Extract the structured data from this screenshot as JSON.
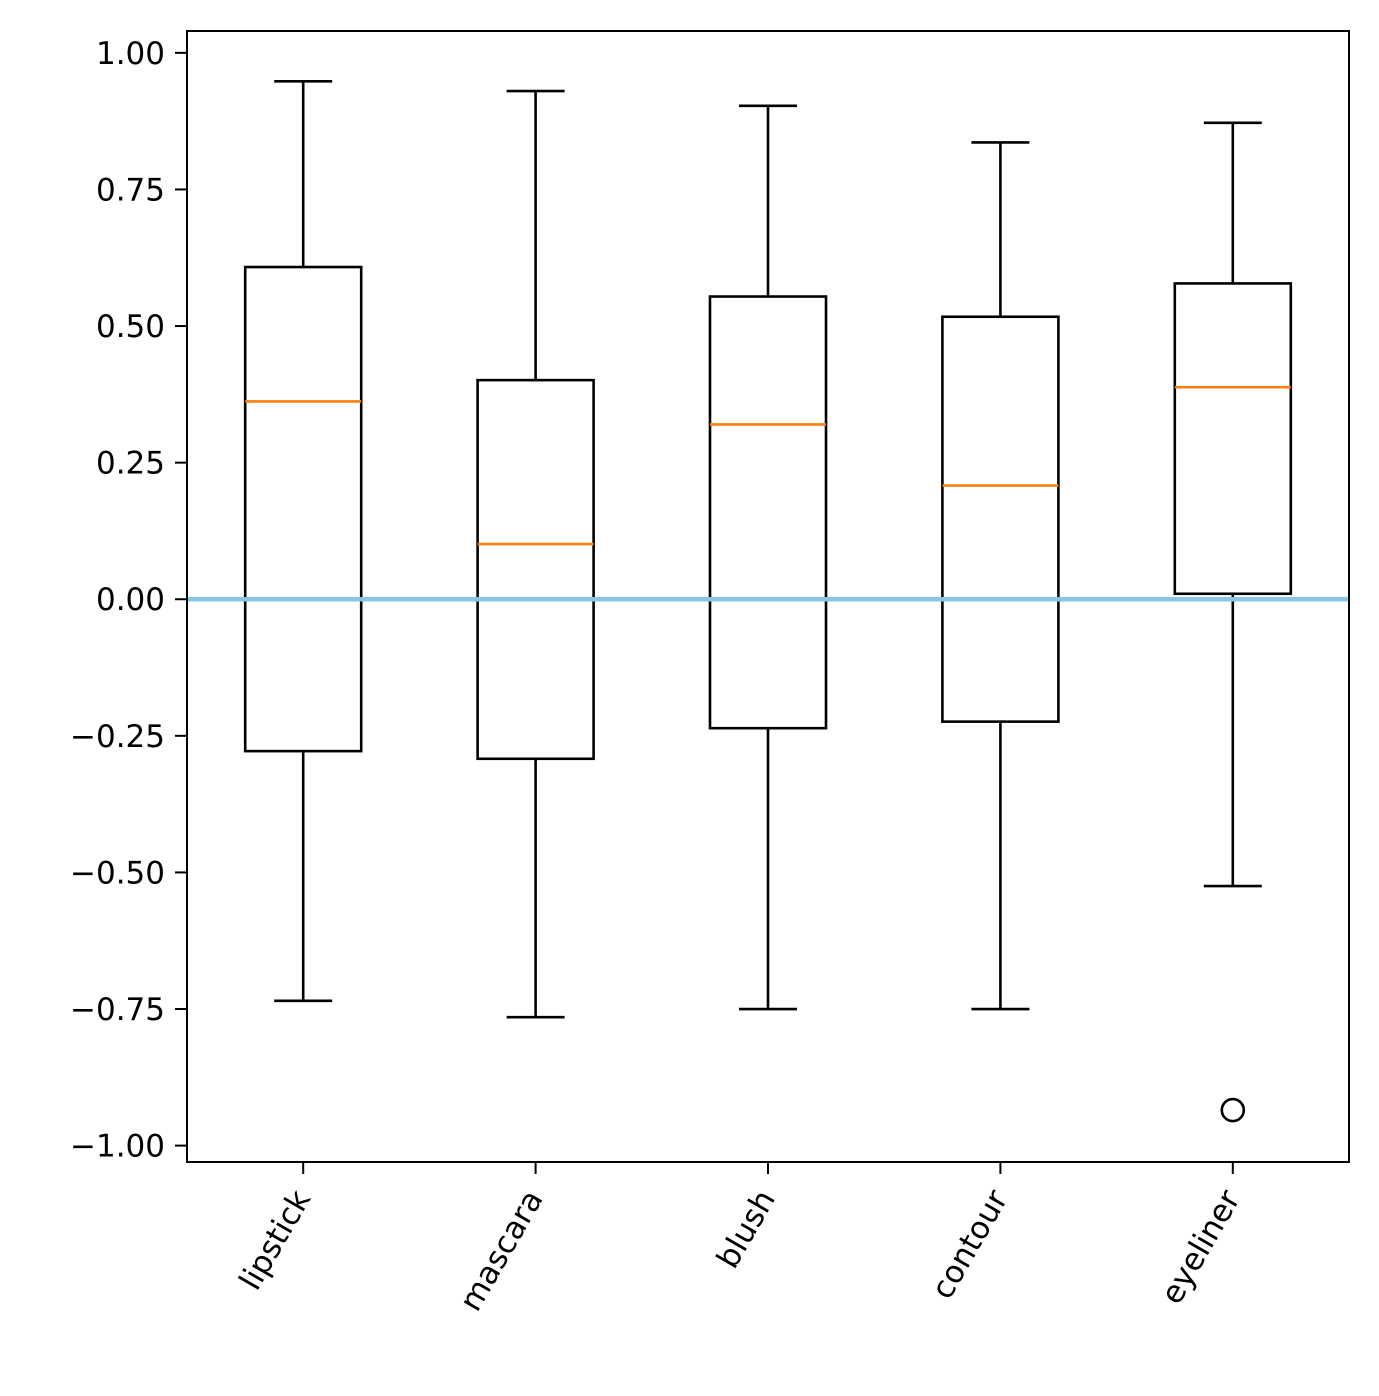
{
  "chart_data": {
    "type": "boxplot",
    "categories": [
      "lipstick",
      "mascara",
      "blush",
      "contour",
      "eyeliner"
    ],
    "boxes": [
      {
        "name": "lipstick",
        "whisker_low": -0.735,
        "q1": -0.278,
        "median": 0.362,
        "q3": 0.608,
        "whisker_high": 0.948,
        "outliers": []
      },
      {
        "name": "mascara",
        "whisker_low": -0.765,
        "q1": -0.292,
        "median": 0.101,
        "q3": 0.401,
        "whisker_high": 0.93,
        "outliers": []
      },
      {
        "name": "blush",
        "whisker_low": -0.75,
        "q1": -0.236,
        "median": 0.32,
        "q3": 0.554,
        "whisker_high": 0.903,
        "outliers": []
      },
      {
        "name": "contour",
        "whisker_low": -0.75,
        "q1": -0.224,
        "median": 0.208,
        "q3": 0.517,
        "whisker_high": 0.836,
        "outliers": []
      },
      {
        "name": "eyeliner",
        "whisker_low": -0.525,
        "q1": 0.01,
        "median": 0.388,
        "q3": 0.578,
        "whisker_high": 0.872,
        "outliers": [
          -0.935
        ]
      }
    ],
    "reference_line": {
      "y": 0.0,
      "color": "#87c6e5"
    },
    "ylim": [
      -1.03,
      1.04
    ],
    "yticks": [
      1.0,
      0.75,
      0.5,
      0.25,
      0.0,
      -0.25,
      -0.5,
      -0.75,
      -1.0
    ],
    "ytick_labels": [
      "1.00",
      "0.75",
      "0.50",
      "0.25",
      "0.00",
      "−0.25",
      "−0.50",
      "−0.75",
      "−1.00"
    ],
    "xtick_rotation_deg": 60,
    "title": "",
    "xlabel": "",
    "ylabel": "",
    "colors": {
      "box": "#000000",
      "median": "#ff7f0e",
      "reference": "#87c6e5"
    }
  }
}
